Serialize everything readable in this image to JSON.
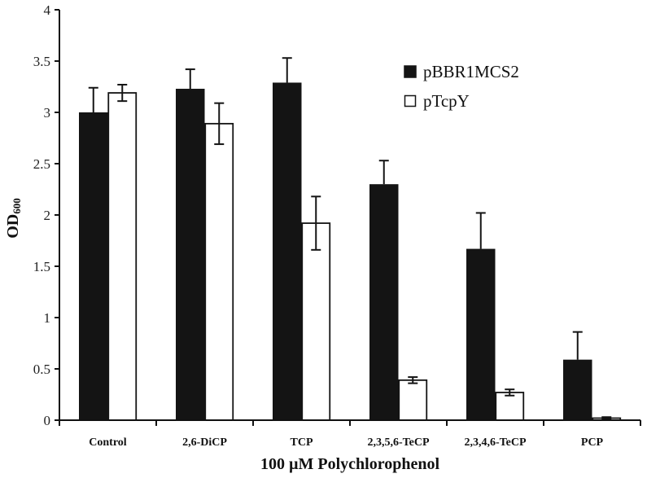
{
  "chart_data": {
    "type": "bar",
    "title": "",
    "xlabel": "100 µM Polychlorophenol",
    "ylabel": "OD600",
    "ylabel_main": "OD",
    "ylabel_sub": "600",
    "ylim": [
      0,
      4
    ],
    "yticks": [
      0,
      0.5,
      1,
      1.5,
      2,
      2.5,
      3,
      3.5,
      4
    ],
    "ytick_labels": [
      "0",
      "0.5",
      "1",
      "1.5",
      "2",
      "2.5",
      "3",
      "3.5",
      "4"
    ],
    "grid": false,
    "legend_position": "upper right",
    "categories": [
      "Control",
      "2,6-DiCP",
      "TCP",
      "2,3,5,6-TeCP",
      "2,3,4,6-TeCP",
      "PCP"
    ],
    "series": [
      {
        "name": "pBBR1MCS2",
        "color": "#141414",
        "fill": "solid",
        "values": [
          3.0,
          3.23,
          3.29,
          2.3,
          1.67,
          0.59
        ],
        "errors": [
          0.24,
          0.19,
          0.24,
          0.23,
          0.35,
          0.27
        ]
      },
      {
        "name": "pTcpY",
        "color": "#ffffff",
        "fill": "hollow",
        "values": [
          3.19,
          2.89,
          1.92,
          0.39,
          0.27,
          0.02
        ],
        "errors": [
          0.08,
          0.2,
          0.26,
          0.03,
          0.03,
          0.01
        ]
      }
    ]
  }
}
